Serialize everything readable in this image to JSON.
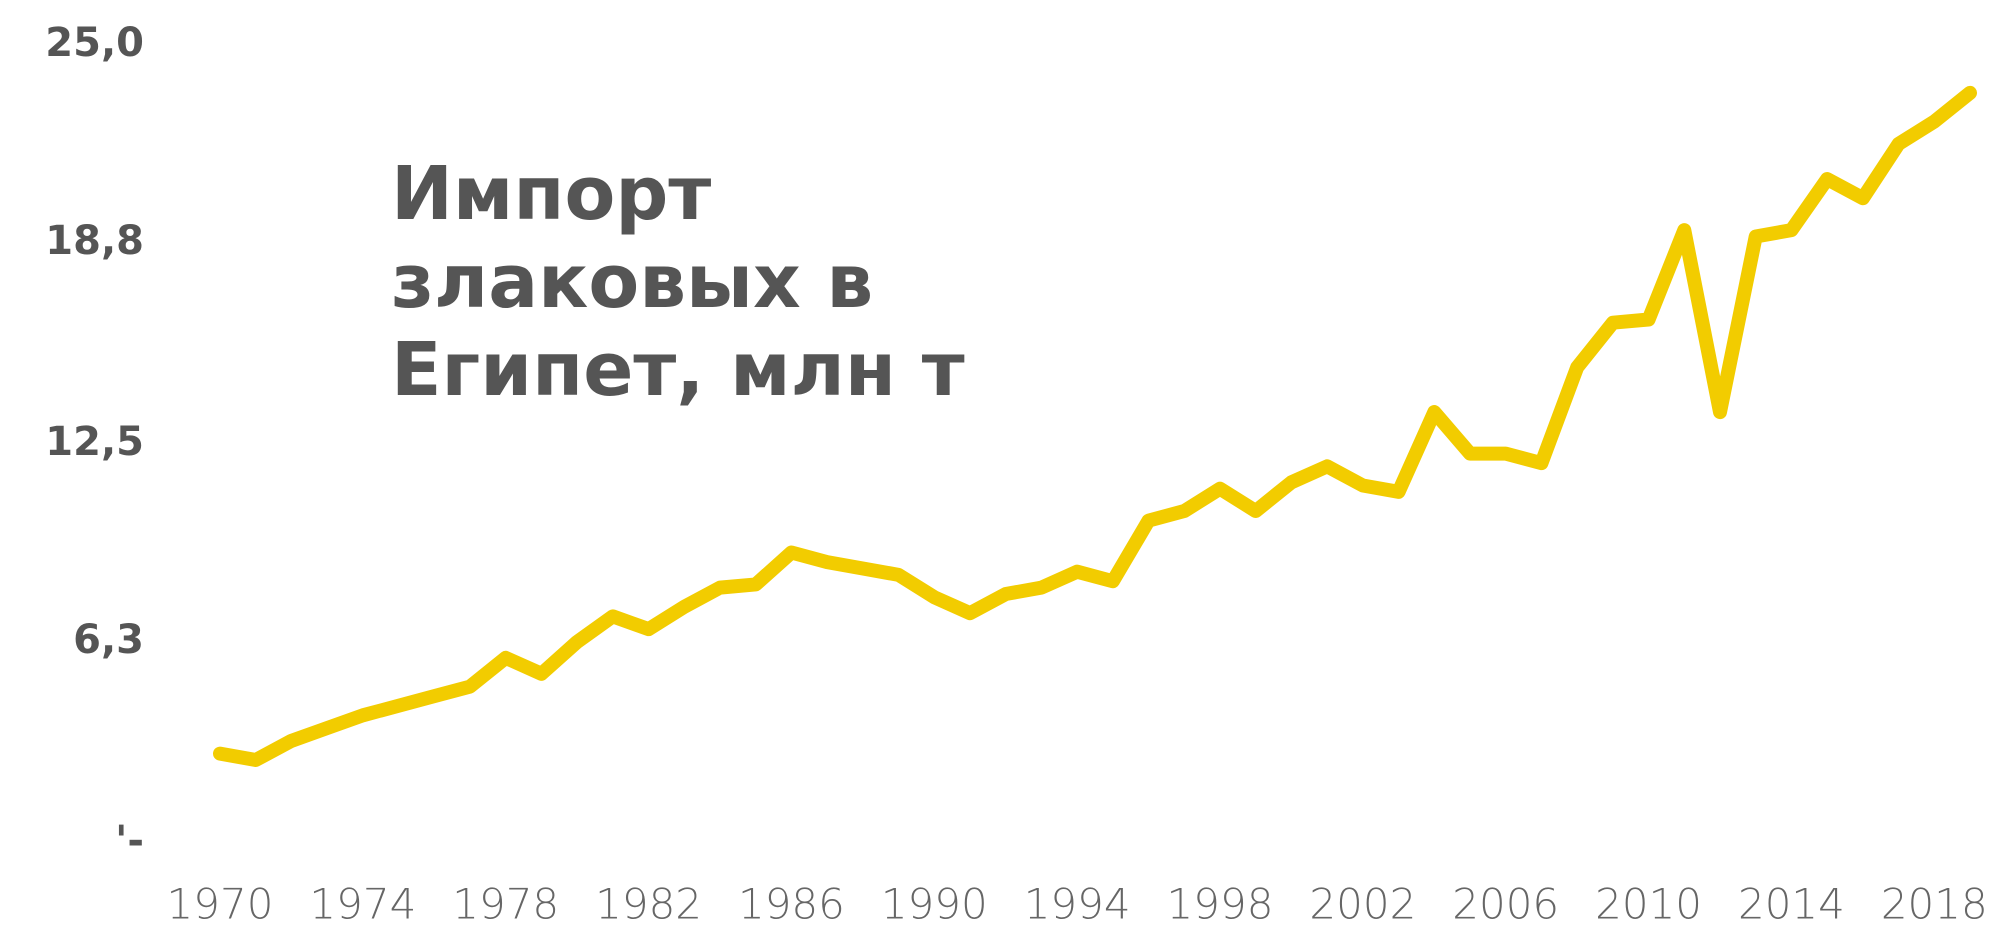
{
  "chart_data": {
    "type": "line",
    "title": "Импорт злаковых в Египет, млн т",
    "x": [
      1970,
      1971,
      1972,
      1973,
      1974,
      1975,
      1976,
      1977,
      1978,
      1979,
      1980,
      1981,
      1982,
      1983,
      1984,
      1985,
      1986,
      1987,
      1988,
      1989,
      1990,
      1991,
      1992,
      1993,
      1994,
      1995,
      1996,
      1997,
      1998,
      1999,
      2000,
      2001,
      2002,
      2003,
      2004,
      2005,
      2006,
      2007,
      2008,
      2009,
      2010,
      2011,
      2012,
      2013,
      2014,
      2015,
      2016,
      2017,
      2018,
      2019
    ],
    "series": [
      {
        "name": "Импорт злаковых",
        "color": "#f2cc00",
        "values": [
          2.8,
          2.6,
          3.2,
          3.6,
          4.0,
          4.3,
          4.6,
          4.9,
          5.8,
          5.3,
          6.3,
          7.1,
          6.7,
          7.4,
          8.0,
          8.1,
          9.1,
          8.8,
          8.6,
          8.4,
          7.7,
          7.2,
          7.8,
          8.0,
          8.5,
          8.2,
          10.1,
          10.4,
          11.1,
          10.4,
          11.3,
          11.8,
          11.2,
          11.0,
          13.5,
          12.2,
          12.2,
          11.9,
          14.9,
          16.3,
          16.4,
          19.2,
          13.5,
          19.0,
          19.2,
          20.8,
          20.2,
          21.9,
          22.6,
          23.5
        ]
      }
    ],
    "xlim": [
      1970,
      2019
    ],
    "xticks": [
      1970,
      1974,
      1978,
      1982,
      1986,
      1990,
      1994,
      1998,
      2002,
      2006,
      2010,
      2014,
      2018
    ],
    "ylim": [
      0,
      25
    ],
    "yticks": [
      {
        "value": 0,
        "label": "'-"
      },
      {
        "value": 6.3,
        "label": "6,3"
      },
      {
        "value": 12.5,
        "label": "12,5"
      },
      {
        "value": 18.8,
        "label": "18,8"
      },
      {
        "value": 25,
        "label": "25,0"
      }
    ],
    "grid": false
  }
}
